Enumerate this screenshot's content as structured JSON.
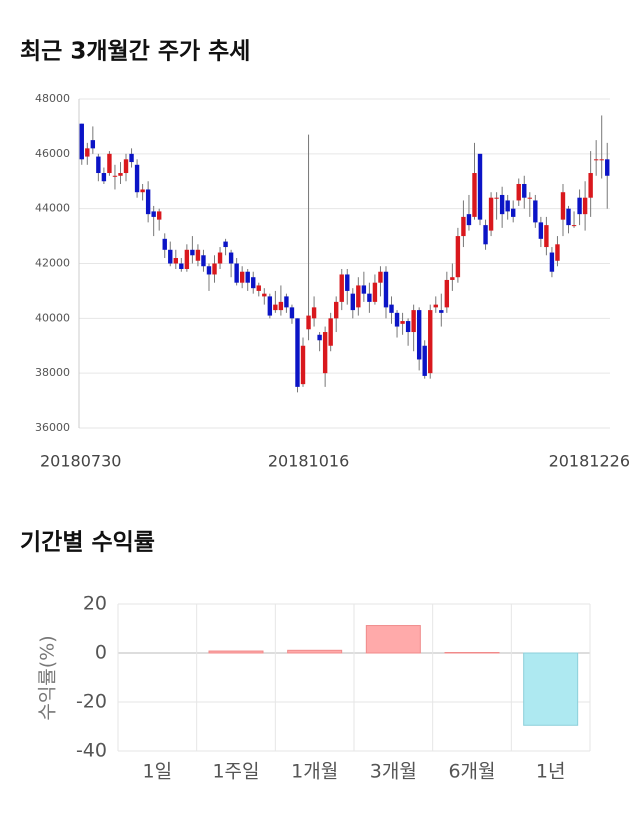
{
  "chart_data": [
    {
      "type": "candlestick",
      "title": "최근 3개월간 주가 추세",
      "categories": [
        "20180730",
        null,
        null,
        null,
        null,
        null,
        null,
        null,
        null,
        null,
        null,
        null,
        null,
        null,
        null,
        null,
        null,
        null,
        null,
        null,
        null,
        null,
        null,
        null,
        null,
        null,
        null,
        null,
        null,
        null,
        null,
        null,
        null,
        null,
        null,
        null,
        null,
        null,
        null,
        null,
        null,
        "20181016",
        null,
        null,
        null,
        null,
        null,
        null,
        null,
        null,
        null,
        null,
        null,
        null,
        null,
        null,
        null,
        null,
        null,
        null,
        null,
        null,
        null,
        null,
        null,
        null,
        null,
        null,
        null,
        null,
        null,
        null,
        null,
        null,
        null,
        null,
        null,
        null,
        null,
        null,
        null,
        null,
        null,
        null,
        null,
        null,
        null,
        null,
        null,
        null,
        null,
        null,
        null,
        null,
        null,
        "20181226"
      ],
      "open": [
        47100,
        45900,
        46500,
        45900,
        45300,
        45300,
        45200,
        45200,
        45300,
        46000,
        45600,
        44600,
        44700,
        43900,
        43600,
        42900,
        42500,
        42000,
        42000,
        41800,
        42500,
        42100,
        42300,
        41900,
        41600,
        42000,
        42800,
        42400,
        42000,
        41300,
        41700,
        41500,
        41000,
        40800,
        40800,
        40300,
        40300,
        40800,
        40400,
        40000,
        37600,
        39600,
        40000,
        39400,
        38000,
        39000,
        40000,
        40600,
        41600,
        40900,
        40400,
        41200,
        40900,
        40600,
        41300,
        41700,
        40500,
        40200,
        39800,
        39900,
        39500,
        40300,
        39000,
        38000,
        40400,
        40300,
        40400,
        41400,
        41500,
        43000,
        43800,
        43700,
        46000,
        43400,
        43200,
        44400,
        44500,
        44300,
        44000,
        44300,
        44900,
        44400,
        44300,
        43500,
        42600,
        42400,
        42100,
        43600,
        44000,
        43400,
        44400,
        43800,
        44400,
        45800,
        45800,
        45800
      ],
      "high": [
        47100,
        46400,
        47000,
        46000,
        45500,
        46100,
        45600,
        45700,
        46000,
        46200,
        45800,
        44900,
        45000,
        44100,
        44000,
        43100,
        42800,
        42500,
        42200,
        42700,
        43000,
        42700,
        42500,
        42000,
        42300,
        42600,
        42900,
        42500,
        42200,
        41900,
        41800,
        41700,
        41300,
        41100,
        40900,
        41000,
        41200,
        40900,
        40500,
        40000,
        39300,
        46700,
        40800,
        39500,
        39700,
        40200,
        40800,
        41800,
        41800,
        41100,
        41500,
        41700,
        41300,
        41600,
        41900,
        41900,
        40800,
        40300,
        40200,
        40000,
        40500,
        40400,
        39200,
        40500,
        40800,
        40900,
        41700,
        42000,
        43300,
        44300,
        44500,
        46400,
        46000,
        43600,
        44600,
        44600,
        44800,
        44500,
        44300,
        45100,
        45200,
        44600,
        44500,
        43700,
        43700,
        42600,
        43000,
        44900,
        44100,
        43900,
        44700,
        45000,
        46100,
        46500,
        47400,
        46400
      ],
      "low": [
        45600,
        45600,
        46000,
        45000,
        44900,
        45200,
        44700,
        44900,
        45000,
        45500,
        44400,
        44300,
        43500,
        43000,
        43200,
        42200,
        41900,
        41800,
        41700,
        41700,
        42000,
        41900,
        41700,
        41000,
        41300,
        41800,
        42300,
        41500,
        41200,
        41100,
        41000,
        40900,
        40800,
        40500,
        40000,
        40200,
        40100,
        40200,
        39800,
        37300,
        37500,
        39200,
        39700,
        38800,
        37500,
        38800,
        39500,
        40300,
        40500,
        40000,
        40100,
        40600,
        40200,
        40500,
        40800,
        40000,
        39800,
        39300,
        39400,
        39000,
        38800,
        38100,
        37800,
        37800,
        40200,
        39700,
        40200,
        41000,
        41300,
        42600,
        43200,
        43600,
        43400,
        42500,
        43000,
        43600,
        43300,
        43600,
        43500,
        44100,
        44000,
        43700,
        43300,
        42600,
        42300,
        41500,
        41900,
        43000,
        43100,
        43300,
        43400,
        43200,
        43700,
        45200,
        45100,
        44000
      ],
      "close": [
        45800,
        46200,
        46200,
        45300,
        45000,
        46000,
        45200,
        45300,
        45800,
        45700,
        44600,
        44700,
        43800,
        43700,
        43900,
        42500,
        42000,
        42200,
        41800,
        42500,
        42300,
        42500,
        41900,
        41600,
        42000,
        42400,
        42600,
        42000,
        41300,
        41700,
        41300,
        41100,
        41200,
        40900,
        40100,
        40500,
        40600,
        40400,
        40000,
        37500,
        39000,
        40100,
        40400,
        39200,
        39500,
        40000,
        40600,
        41600,
        41000,
        40300,
        41200,
        40900,
        40600,
        41300,
        41700,
        40400,
        40200,
        39700,
        39900,
        39500,
        40300,
        38500,
        37900,
        40300,
        40500,
        40200,
        41400,
        41500,
        43000,
        43700,
        43400,
        45300,
        43600,
        42700,
        44400,
        44400,
        43800,
        43900,
        43700,
        44900,
        44400,
        44400,
        43500,
        42900,
        43400,
        41700,
        42700,
        44600,
        43400,
        43400,
        43800,
        44400,
        45300,
        45800,
        45800,
        45200
      ],
      "up_color": "#d9181d",
      "down_color": "#0b14c6",
      "ylim": [
        36000,
        48000
      ],
      "yticks": [
        36000,
        38000,
        40000,
        42000,
        44000,
        46000,
        48000
      ],
      "grid": true
    },
    {
      "type": "bar",
      "title": "기간별 수익률",
      "ylabel": "수익률(%)",
      "categories": [
        "1일",
        "1주일",
        "1개월",
        "3개월",
        "6개월",
        "1년"
      ],
      "values": [
        0,
        0.8,
        1.1,
        11.2,
        0.2,
        -29.5
      ],
      "positive_color": "#ffaaaa",
      "negative_color": "#aee9f1",
      "ylim": [
        -40,
        20
      ],
      "yticks": [
        -40,
        -20,
        0,
        20
      ],
      "grid": true
    }
  ]
}
